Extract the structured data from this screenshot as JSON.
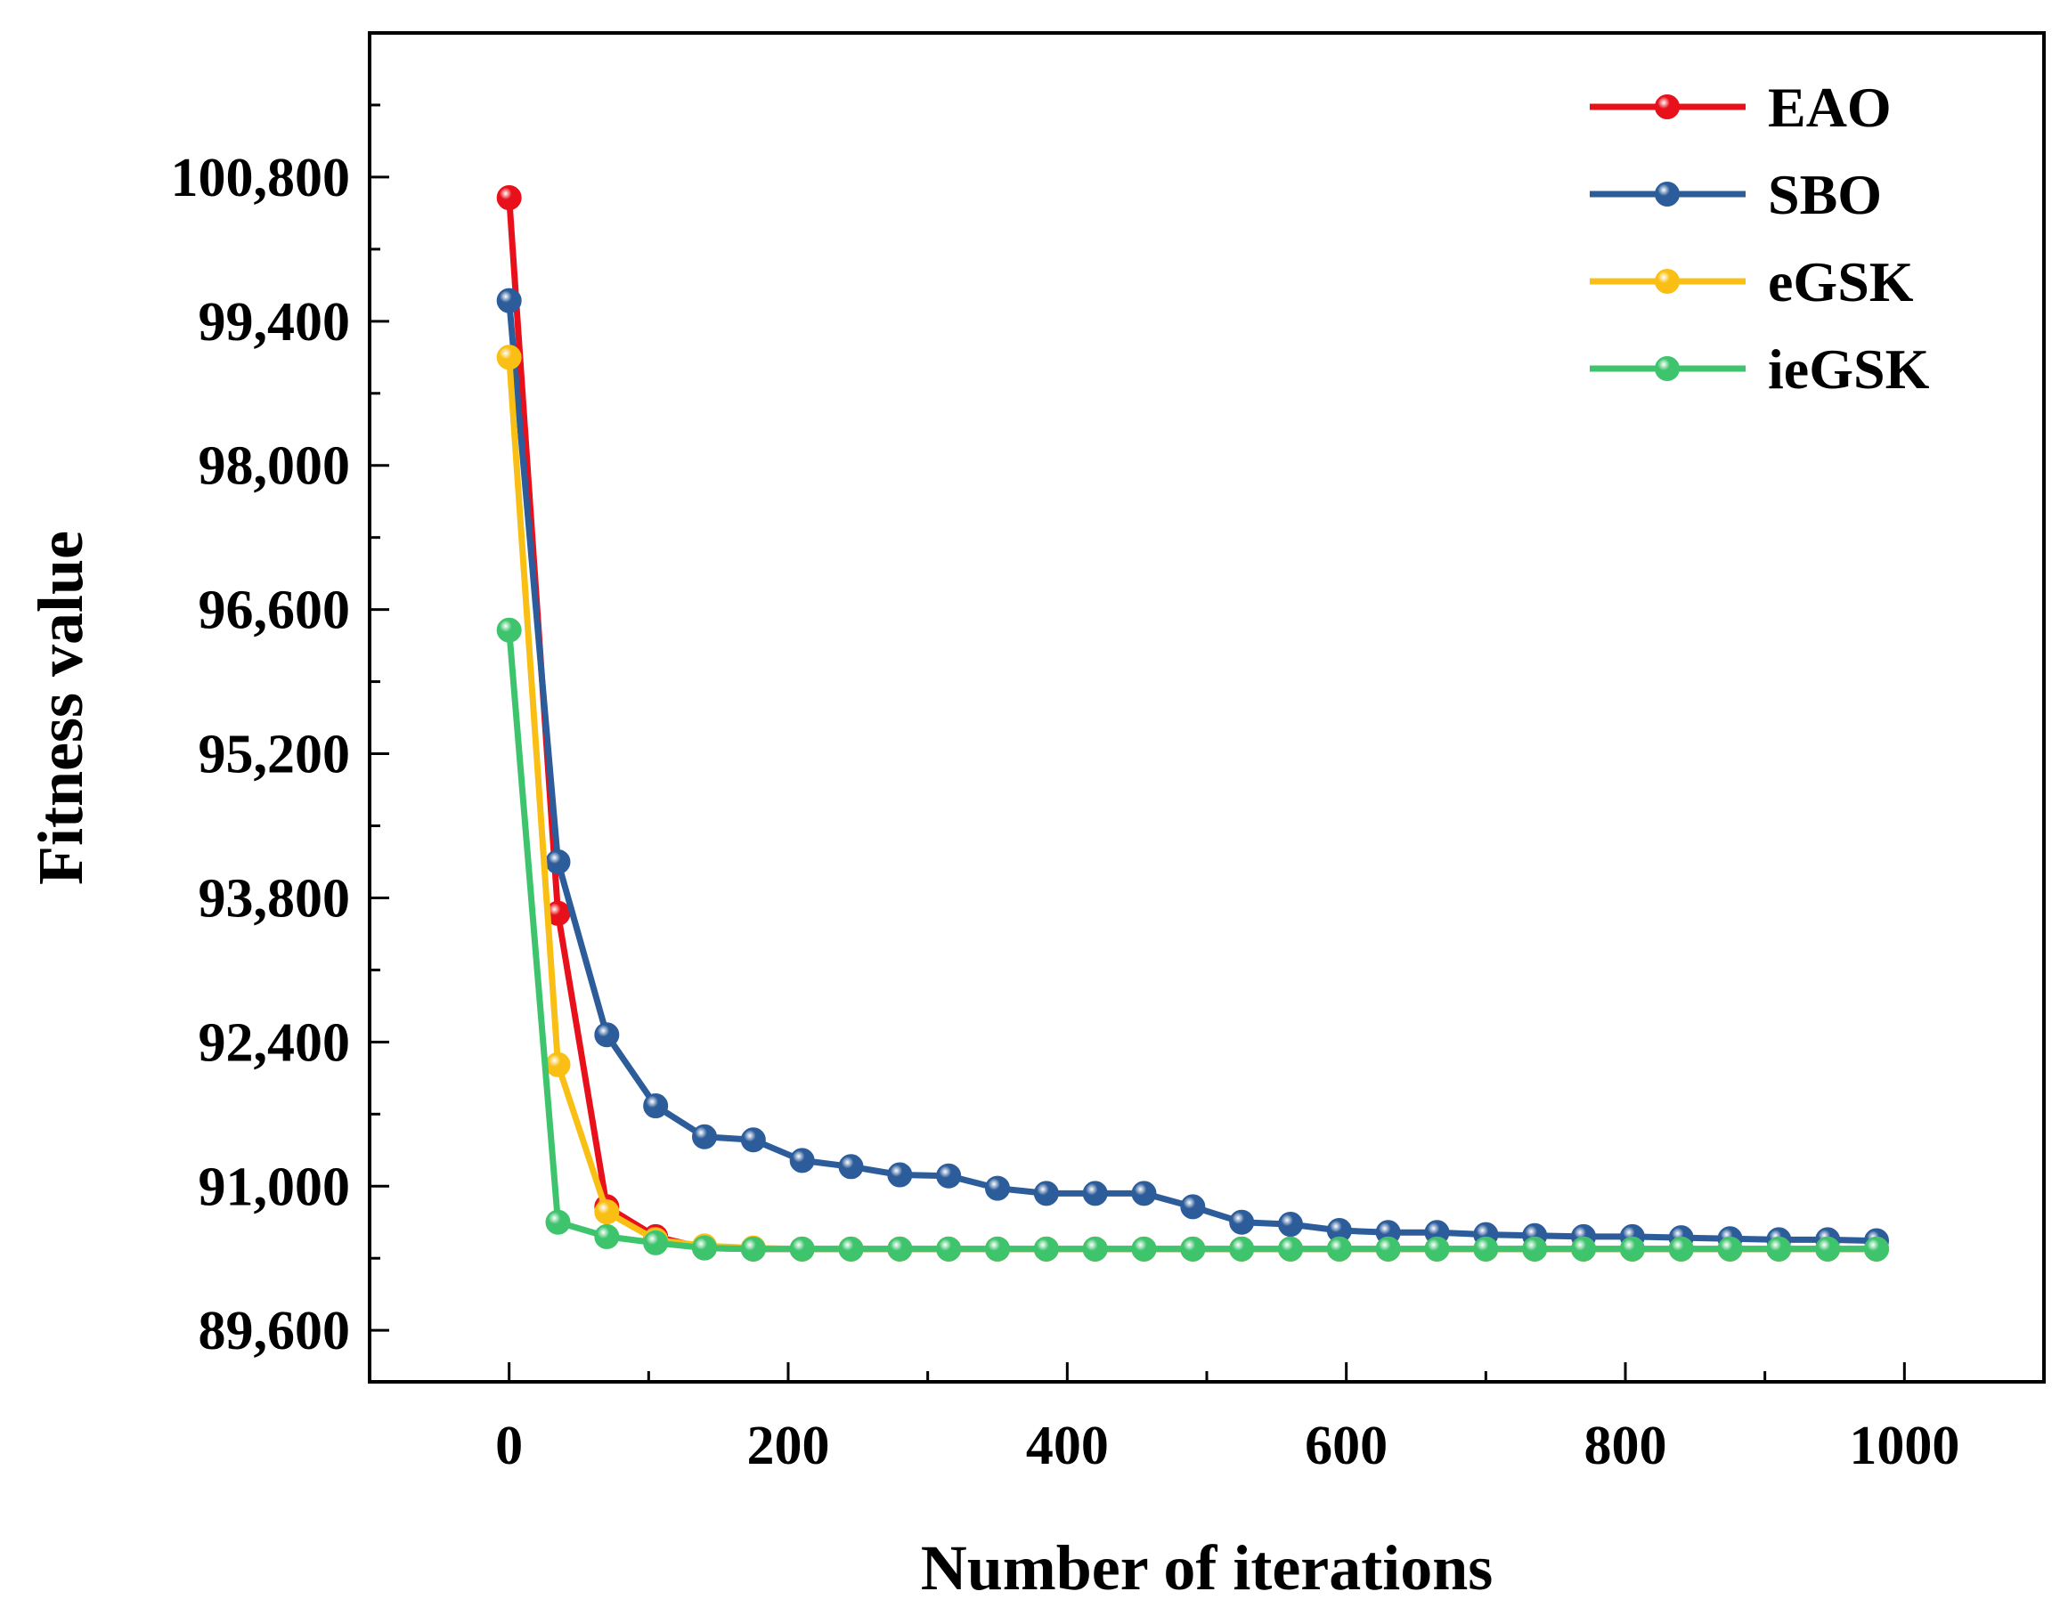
{
  "chart_data": {
    "type": "line",
    "title": "",
    "xlabel": "Number of iterations",
    "ylabel": "Fitness value",
    "xlim": [
      -100,
      1100
    ],
    "ylim": [
      89100,
      102200
    ],
    "xticks": [
      0,
      200,
      400,
      600,
      800,
      1000
    ],
    "xtick_labels": [
      "0",
      "200",
      "400",
      "600",
      "800",
      "1000"
    ],
    "yticks": [
      89600,
      91000,
      92400,
      93800,
      95200,
      96600,
      98000,
      99400,
      100800
    ],
    "ytick_labels": [
      "89,600",
      "91,000",
      "92,400",
      "93,800",
      "95,200",
      "96,600",
      "98,000",
      "99,400",
      "100,800"
    ],
    "grid": false,
    "legend_position": "top-right",
    "x": [
      0,
      35,
      70,
      105,
      140,
      175,
      210,
      245,
      280,
      315,
      350,
      385,
      420,
      455,
      490,
      525,
      560,
      595,
      630,
      665,
      700,
      735,
      770,
      805,
      840,
      875,
      910,
      945,
      980
    ],
    "series": [
      {
        "name": "EAO",
        "color": "#e8101a",
        "values": [
          100600,
          93650,
          90800,
          90510,
          90400,
          90390,
          90390,
          90390,
          90390,
          90390,
          90390,
          90390,
          90390,
          90390,
          90390,
          90390,
          90390,
          90390,
          90390,
          90390,
          90390,
          90390,
          90390,
          90390,
          90390,
          90390,
          90390,
          90390,
          90390
        ]
      },
      {
        "name": "SBO",
        "color": "#2c5c9a",
        "values": [
          99600,
          94150,
          92470,
          91780,
          91480,
          91450,
          91250,
          91190,
          91110,
          91100,
          90980,
          90930,
          90930,
          90930,
          90800,
          90650,
          90630,
          90570,
          90550,
          90550,
          90530,
          90520,
          90510,
          90510,
          90500,
          90490,
          90480,
          90480,
          90470
        ]
      },
      {
        "name": "eGSK",
        "color": "#f9bf14",
        "values": [
          99050,
          92180,
          90750,
          90480,
          90420,
          90400,
          90390,
          90390,
          90390,
          90390,
          90390,
          90390,
          90390,
          90390,
          90390,
          90390,
          90390,
          90390,
          90390,
          90390,
          90390,
          90390,
          90390,
          90390,
          90390,
          90390,
          90390,
          90390,
          90390
        ]
      },
      {
        "name": "ieGSK",
        "color": "#3ec46d",
        "values": [
          96400,
          90650,
          90510,
          90450,
          90400,
          90390,
          90390,
          90390,
          90390,
          90390,
          90390,
          90390,
          90390,
          90390,
          90390,
          90390,
          90390,
          90390,
          90390,
          90390,
          90390,
          90390,
          90390,
          90390,
          90390,
          90390,
          90390,
          90390,
          90390
        ]
      }
    ]
  }
}
